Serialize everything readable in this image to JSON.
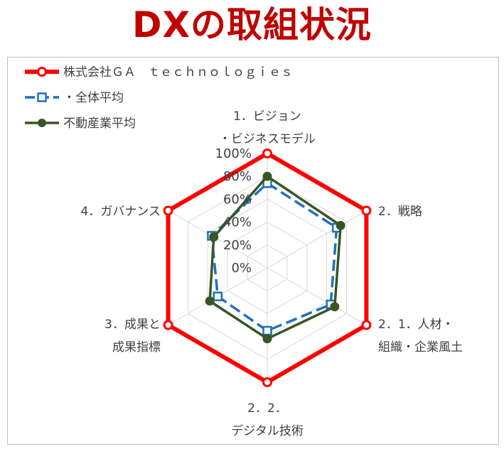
{
  "title": "DXの取組状況",
  "chart_data": {
    "type": "radar",
    "categories": [
      [
        "1．ビジョン",
        "・ビジネスモデル"
      ],
      [
        "2．戦略"
      ],
      [
        "2．1．人材・",
        "組織・企業風土"
      ],
      [
        "2．2．",
        "デジタル技術"
      ],
      [
        "3．成果と",
        "成果指標"
      ],
      [
        "4．ガバナンス"
      ]
    ],
    "rlim": [
      0,
      100
    ],
    "ticks": [
      "0%",
      "20%",
      "40%",
      "60%",
      "80%",
      "100%"
    ],
    "tick_values": [
      0,
      20,
      40,
      60,
      80,
      100
    ],
    "legend_position": "top-left",
    "series": [
      {
        "name": "株式会社ＧＡ　ｔｅｃｈｎｏｌｏｇｉｅｓ",
        "values": [
          100,
          100,
          100,
          100,
          100,
          100
        ],
        "color": "#ff0000",
        "marker": "circle-open",
        "dash": "solid"
      },
      {
        "name": "・全体平均",
        "values": [
          74,
          70,
          64,
          55,
          50,
          56
        ],
        "color": "#1f6fc0",
        "marker": "square-open",
        "dash": "dashed"
      },
      {
        "name": "不動産業平均",
        "values": [
          80,
          74,
          68,
          62,
          58,
          54
        ],
        "color": "#375623",
        "marker": "circle-filled",
        "dash": "solid"
      }
    ]
  }
}
